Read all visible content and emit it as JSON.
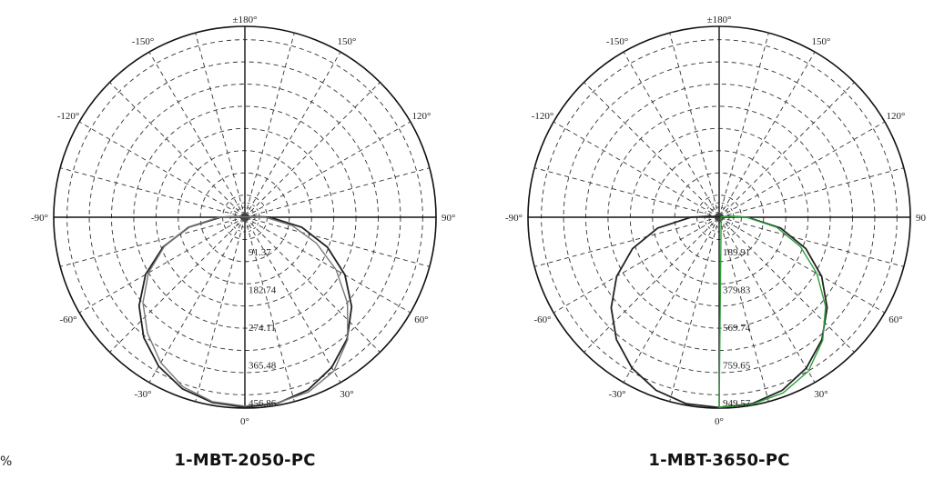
{
  "chart_data": [
    {
      "type": "polar",
      "caption": "1-MBT-2050-PC",
      "angle_labels": [
        "±180°",
        "150°",
        "120°",
        "90°",
        "60°",
        "30°",
        "0°",
        "-30°",
        "-60°",
        "-90°",
        "-120°",
        "-150°"
      ],
      "radial_labels": [
        "91.37",
        "182.74",
        "274.11",
        "365.48",
        "456.86"
      ],
      "rmax": 456.86,
      "grid": "dashed",
      "series": [
        {
          "color": "#222222",
          "points": [
            [
              0,
              455
            ],
            [
              10,
              452
            ],
            [
              20,
              440
            ],
            [
              30,
              415
            ],
            [
              40,
              380
            ],
            [
              50,
              333
            ],
            [
              60,
              276
            ],
            [
              70,
              210
            ],
            [
              80,
              138
            ],
            [
              90,
              60
            ],
            [
              95,
              20
            ],
            [
              100,
              5
            ],
            [
              -10,
              450
            ],
            [
              -20,
              437
            ],
            [
              -30,
              412
            ],
            [
              -40,
              376
            ],
            [
              -50,
              330
            ],
            [
              -60,
              274
            ],
            [
              -70,
              208
            ],
            [
              -80,
              136
            ],
            [
              -90,
              58
            ],
            [
              -95,
              18
            ],
            [
              -100,
              5
            ]
          ]
        },
        {
          "color": "#777777",
          "points": [
            [
              0,
              452
            ],
            [
              10,
              451
            ],
            [
              20,
              445
            ],
            [
              30,
              425
            ],
            [
              40,
              382
            ],
            [
              50,
              320
            ],
            [
              60,
              252
            ],
            [
              70,
              182
            ],
            [
              80,
              115
            ],
            [
              90,
              48
            ],
            [
              95,
              15
            ],
            [
              100,
              4
            ],
            [
              -10,
              448
            ],
            [
              -20,
              432
            ],
            [
              -30,
              402
            ],
            [
              -40,
              362
            ],
            [
              -50,
              318
            ],
            [
              -60,
              266
            ],
            [
              -70,
              205
            ],
            [
              -80,
              138
            ],
            [
              -90,
              62
            ],
            [
              -95,
              20
            ],
            [
              -100,
              5
            ]
          ]
        }
      ]
    },
    {
      "type": "polar",
      "caption": "1-MBT-3650-PC",
      "angle_labels": [
        "±180°",
        "150°",
        "120°",
        "90",
        "60°",
        "30°",
        "0°",
        "-30°",
        "-60°",
        "-90°",
        "-120°",
        "-150°"
      ],
      "radial_labels": [
        "189.91",
        "379.83",
        "569.74",
        "759.65",
        "949.57"
      ],
      "rmax": 949.57,
      "grid": "dashed",
      "series": [
        {
          "color": "#222222",
          "points": [
            [
              0,
              947
            ],
            [
              10,
              942
            ],
            [
              20,
              916
            ],
            [
              30,
              866
            ],
            [
              40,
              794
            ],
            [
              50,
              700
            ],
            [
              60,
              588
            ],
            [
              70,
              458
            ],
            [
              80,
              310
            ],
            [
              90,
              140
            ],
            [
              95,
              50
            ],
            [
              100,
              10
            ],
            [
              -10,
              942
            ],
            [
              -20,
              916
            ],
            [
              -30,
              866
            ],
            [
              -40,
              794
            ],
            [
              -50,
              700
            ],
            [
              -60,
              588
            ],
            [
              -70,
              458
            ],
            [
              -80,
              310
            ],
            [
              -90,
              140
            ],
            [
              -95,
              50
            ],
            [
              -100,
              10
            ]
          ]
        },
        {
          "color": "#2e9e3a",
          "points": [
            [
              0,
              946
            ],
            [
              10,
              945
            ],
            [
              20,
              930
            ],
            [
              30,
              885
            ],
            [
              40,
              800
            ],
            [
              50,
              690
            ],
            [
              60,
              560
            ],
            [
              70,
              430
            ],
            [
              80,
              290
            ],
            [
              90,
              135
            ],
            [
              95,
              50
            ],
            [
              100,
              10
            ]
          ]
        }
      ]
    }
  ],
  "edge_fragments": {
    "left": "%",
    "right": "90"
  }
}
